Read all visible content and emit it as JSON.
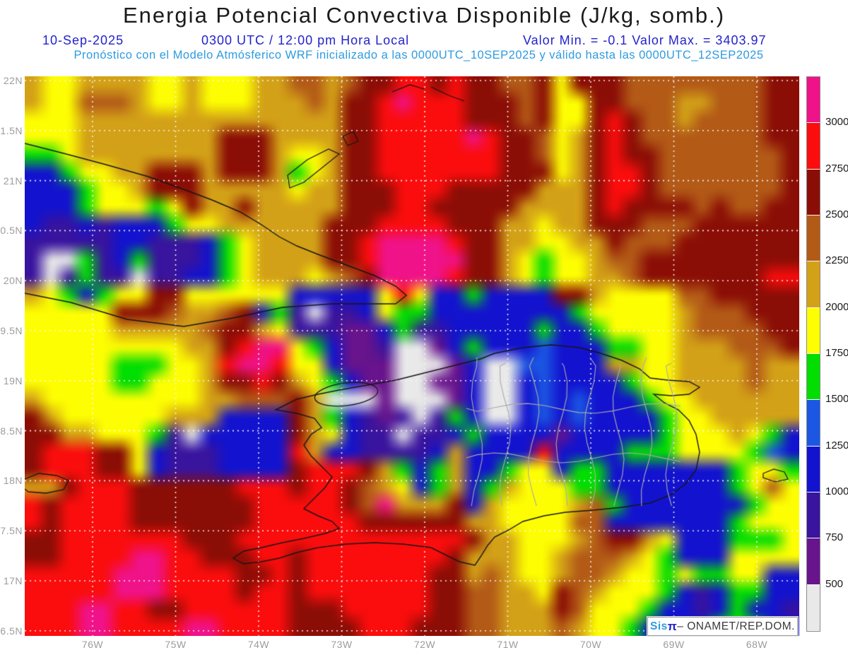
{
  "header": {
    "title": "Energia Potencial Convectiva Disponible (J/kg, somb.)",
    "date": "10-Sep-2025",
    "time": "0300 UTC / 12:00 pm Hora Local",
    "minmax": "Valor Min. = -0.1  Valor Max. = 3403.97",
    "model_line": "Pronóstico con el Modelo Atmósferico WRF inicializado a las 0000UTC_10SEP2025 y válido hasta las  0000UTC_12SEP2025"
  },
  "map": {
    "y_ticks": [
      "22N",
      "1.5N",
      "21N",
      "0.5N",
      "20N",
      "9.5N",
      "19N",
      "8.5N",
      "18N",
      "7.5N",
      "17N",
      "6.5N"
    ],
    "x_ticks": [
      "76W",
      "75W",
      "74W",
      "73W",
      "72W",
      "71W",
      "70W",
      "69W",
      "68W"
    ],
    "palette": {
      "K": "#f01289",
      "R": "#fb0d0d",
      "M": "#8b0e06",
      "N": "#b35a17",
      "O": "#d3a117",
      "Y": "#fefe02",
      "G": "#02de02",
      "b": "#1c57e3",
      "B": "#1313cf",
      "i": "#39149e",
      "p": "#68148c",
      "g": "#e9e9e9"
    },
    "grid_rows": [
      "OYYOOOOYYOYYYOONNONMMRRMRMMNNMYMMMNNNNNNNNMM",
      "OYYNNNOYYOYYYOOONOMMRKRRRMMMNMYYMMNNNOONNNMM",
      "YYYOOOOOOOOOOOOOOOMMRRRRRMMMNMYYMRMNNONNNNMM",
      "YYYOOOOOOOOMMMOOOOMMRRRRRKRMMNYOMRMNNNNNNNMM",
      "GGYOOOOOOOOMMMOYYOMMRRRRRRRMMNYOMRMMNNNNNNNM",
      "BBGYYOOMMMOMMMOGYOMMRRRRRRRMMMYOMRRMNNNNNNNM",
      "BBBGYYOMMMOOOOOYOOMMMRRRMMMMMOOOMRRMNNNNNNNM",
      "BBBGYYYGYMOOMOOOOOMMMRRMMMMMOOOOMRMMMMNMNNMM",
      "BiiBiBBBGYYOOOOOOMMMRRRRMMMOOYOOMMMNNNMMMMMM",
      "iiiiiBBiiiBGYOOOOMMRKKKKRMMOOYYOOMNNNMMMMMMM",
      "iggGiBGiiiBGYOOOOMMRKKKKKMMOYGYYONNMMMMMMMMM",
      "igiGiigiiBBGYOOOYONMKKKKRMMOYGYYOONMMMMMMMRR",
      "OYGBGYYMMYYYYYYBBBBBYRYBBGBBBBMMOYYYYNNMMMMM",
      "YYYYYMMMNOONMBGigiiBYGGBBBBBBBBGYYYYYONNNMMM",
      "YYYYYOOOOONMMOYiiippBGiiBBBBBGBBGYYYYONNNNMM",
      "YYYYYYYYYOOMRKKYGBppiggpBGBBBbBBBGGYYOOONNNM",
      "YYYYYGGGYYORKKRYYBpppgggpBggbbBBBOOYYOOOONOO",
      "YYYYYGGYYYOMMRMOYGBppggppBggBbBBBBGYYOOOONOO",
      "OYYYYYYYYYOONNNMOgggpgggpBggBbBbBBBGYYOOOOOO",
      "MOYYYYYYOOOBBBBMOGBipigiGBggBbBbBBBBGYYOOOOO",
      "MMOOYYYGigBBBBBMOYBiigiiBGBBBBpBBBBBGYYYOYGB",
      "MRRRMMYBiiiBBBBROBBiiiiBOBBBBRBBBBGGGYYYYGbB",
      "MRRRMMYBiiiBBBBMRRRMOGBGOBBGYYBGGBBBBBBBGYYG",
      "OOMRRRMMMMMMRRRMRRMNOYBGOBGOYYYGGBBBBBBBGYNY",
      "RMRRRRMMMMMMMRRRRRMNKOOOMBOYYYYONGBBBBBBBGYY",
      "RMRRRRMMMMMMMRRRRRRMMMMMMOOYYYYNNBBBBBBBGYYY",
      "MMRRRRRRRMMMRRRRRRRRRRRRRMOOYYYONMMOYBBBGGGYY",
      "MMRRRRKKRRMMMRRMRRRRRRRRMOOOYYONNNOYGBBBYYYY",
      "RRRRRKKKRRRRMMRMRRRRRRRMMONOYYONNOYYGYGGYYBB",
      "RRRRRKKKRRRRMRRMRRRRRRRMMNNOOYMNOYYYGBiBGGBB",
      "RRRKKRRMMRRRRRRMMMRRRRRMMNNOOOMNYYYGBBiBGBBi",
      "RRRKKRRRRKKRRRRMMMMRRRMMMNNOOONOYYGBBBBGGGBB"
    ]
  },
  "colorbar": {
    "segments": [
      {
        "color": "#f01289",
        "label": "3000"
      },
      {
        "color": "#fb0d0d",
        "label": "2750"
      },
      {
        "color": "#8b0e06",
        "label": "2500"
      },
      {
        "color": "#b35a17",
        "label": "2250"
      },
      {
        "color": "#d3a117",
        "label": "2000"
      },
      {
        "color": "#fefe02",
        "label": "1750"
      },
      {
        "color": "#02de02",
        "label": "1500"
      },
      {
        "color": "#1c57e3",
        "label": "1250"
      },
      {
        "color": "#1313cf",
        "label": "1000"
      },
      {
        "color": "#39149e",
        "label": "750"
      },
      {
        "color": "#68148c",
        "label": "500"
      },
      {
        "color": "#e9e9e9",
        "label": ""
      }
    ]
  },
  "credit": {
    "sis": "Sis",
    "pi": "π",
    "rest": " – ONAMET/REP.DOM."
  }
}
